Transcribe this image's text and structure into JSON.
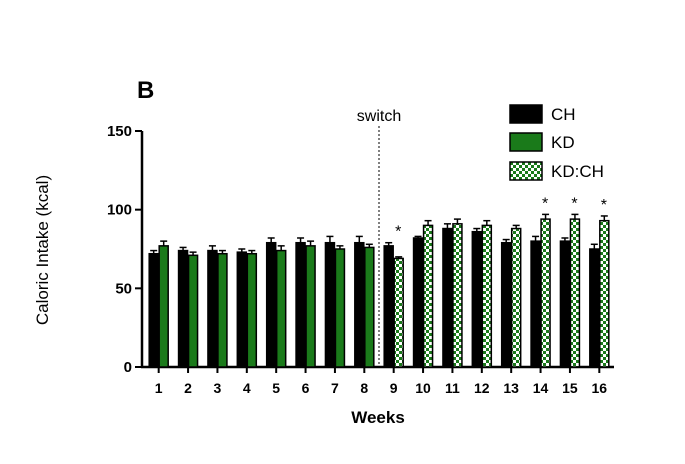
{
  "panel_label": "B",
  "chart_data": {
    "type": "bar",
    "title": "",
    "xlabel": "Weeks",
    "ylabel": "Caloric Intake (kcal)",
    "ylim": [
      0,
      150
    ],
    "yticks": [
      0,
      50,
      100,
      150
    ],
    "categories": [
      "1",
      "2",
      "3",
      "4",
      "5",
      "6",
      "7",
      "8",
      "9",
      "10",
      "11",
      "12",
      "13",
      "14",
      "15",
      "16"
    ],
    "switch_label": "switch",
    "switch_after_category": "8",
    "series": [
      {
        "name": "CH",
        "fill": "#000000",
        "values": [
          72,
          74,
          74,
          73,
          79,
          79,
          79,
          79,
          77,
          82,
          88,
          86,
          79,
          80,
          80,
          75
        ],
        "errors": [
          2,
          2,
          3,
          2,
          3,
          3,
          4,
          4,
          2,
          1,
          3,
          2,
          2,
          3,
          2,
          3
        ]
      },
      {
        "name": "KD",
        "fill": "#1a7a1a",
        "values": [
          77,
          71,
          72,
          72,
          74,
          77,
          75,
          76,
          null,
          null,
          null,
          null,
          null,
          null,
          null,
          null
        ],
        "errors": [
          3,
          2,
          2,
          2,
          3,
          3,
          2,
          2,
          null,
          null,
          null,
          null,
          null,
          null,
          null,
          null
        ]
      },
      {
        "name": "KD:CH",
        "fill": "#1a7a1a",
        "pattern": "checker",
        "values": [
          null,
          null,
          null,
          null,
          null,
          null,
          null,
          null,
          69,
          90,
          91,
          90,
          88,
          94,
          94,
          93
        ],
        "errors": [
          null,
          null,
          null,
          null,
          null,
          null,
          null,
          null,
          1,
          3,
          3,
          3,
          2,
          3,
          3,
          3
        ]
      }
    ],
    "significance": [
      {
        "category": "9",
        "label": "*"
      },
      {
        "category": "14",
        "label": "*"
      },
      {
        "category": "15",
        "label": "*"
      },
      {
        "category": "16",
        "label": "*"
      }
    ],
    "legend": {
      "position": "top-right",
      "entries": [
        "CH",
        "KD",
        "KD:CH"
      ]
    }
  }
}
